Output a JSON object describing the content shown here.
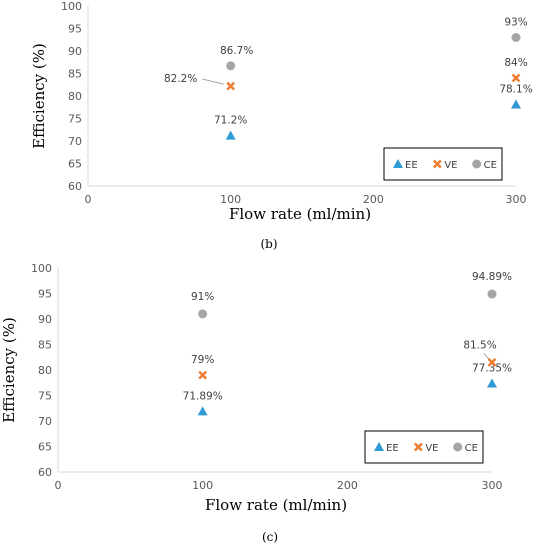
{
  "chart_data": [
    {
      "type": "scatter",
      "caption": "(b)",
      "xlabel": "Flow rate (ml/min)",
      "ylabel": "Efficiency  (%)",
      "xlim": [
        0,
        300
      ],
      "ylim": [
        60,
        100
      ],
      "xticks": [
        "0",
        "100",
        "200",
        "300"
      ],
      "yticks": [
        "60",
        "65",
        "70",
        "75",
        "80",
        "85",
        "90",
        "95",
        "100"
      ],
      "legend_position": "bottom-right",
      "series": [
        {
          "name": "EE",
          "color": "#2e9ad6",
          "marker": "triangle",
          "x": [
            100,
            300
          ],
          "y": [
            71.2,
            78.1
          ],
          "labels": [
            "71.2%",
            "78.1%"
          ]
        },
        {
          "name": "VE",
          "color": "#ed7d31",
          "marker": "x",
          "x": [
            100,
            300
          ],
          "y": [
            82.2,
            84
          ],
          "labels": [
            "82.2%",
            "84%"
          ]
        },
        {
          "name": "CE",
          "color": "#a5a5a5",
          "marker": "circle",
          "x": [
            100,
            300
          ],
          "y": [
            86.7,
            93
          ],
          "labels": [
            "86.7%",
            "93%"
          ]
        }
      ]
    },
    {
      "type": "scatter",
      "caption": "(c)",
      "xlabel": "Flow rate (ml/min)",
      "ylabel": "Efficiency  (%)",
      "xlim": [
        0,
        300
      ],
      "ylim": [
        60,
        100
      ],
      "xticks": [
        "0",
        "100",
        "200",
        "300"
      ],
      "yticks": [
        "60",
        "65",
        "70",
        "75",
        "80",
        "85",
        "90",
        "95",
        "100"
      ],
      "legend_position": "bottom-right",
      "series": [
        {
          "name": "EE",
          "color": "#2e9ad6",
          "marker": "triangle",
          "x": [
            100,
            300
          ],
          "y": [
            71.89,
            77.35
          ],
          "labels": [
            "71.89%",
            "77.35%"
          ]
        },
        {
          "name": "VE",
          "color": "#ed7d31",
          "marker": "x",
          "x": [
            100,
            300
          ],
          "y": [
            79,
            81.5
          ],
          "labels": [
            "79%",
            "81.5%"
          ]
        },
        {
          "name": "CE",
          "color": "#a5a5a5",
          "marker": "circle",
          "x": [
            100,
            300
          ],
          "y": [
            91,
            94.89
          ],
          "labels": [
            "91%",
            "94.89%"
          ]
        }
      ]
    }
  ]
}
